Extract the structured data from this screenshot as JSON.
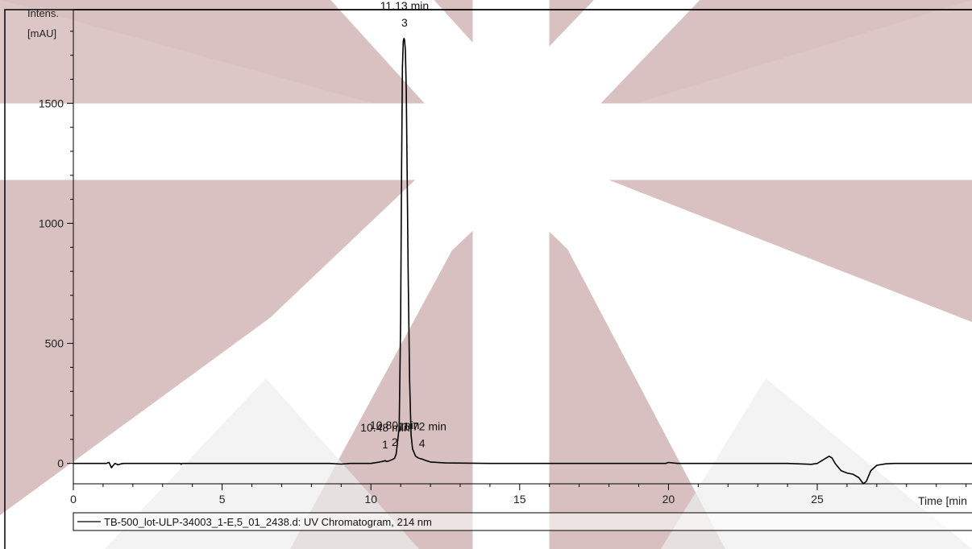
{
  "chart_data": {
    "type": "line",
    "y_unit": [
      "Intens.",
      "[mAU]"
    ],
    "xlabel": "Time [min",
    "xlim": [
      0,
      30.2
    ],
    "ylim": [
      -85,
      1890
    ],
    "x_ticks": [
      0,
      5,
      10,
      15,
      20,
      25
    ],
    "y_ticks": [
      0,
      500,
      1000,
      1500
    ],
    "x_minor_step": 1,
    "y_minor_step": 100,
    "legend": {
      "placement": "bottom",
      "label": "TB-500_lot-ULP-34003_1-E,5_01_2438.d: UV Chromatogram, 214 nm"
    },
    "peak_annotations": [
      {
        "time_text": "11.13 min",
        "number": "3",
        "x": 11.13,
        "y": 1770
      },
      {
        "time_text": "10.48 min",
        "number": "1",
        "x": 10.48,
        "y": 12
      },
      {
        "time_text": "10.80 min",
        "number": "2",
        "x": 10.8,
        "y": 22
      },
      {
        "time_text": "11.72 min",
        "number": "4",
        "x": 11.72,
        "y": 18
      }
    ],
    "series": [
      {
        "color": "#000000",
        "x": [
          0,
          1.0,
          1.1,
          1.2,
          1.28,
          1.33,
          1.4,
          1.5,
          1.6,
          1.7,
          2.0,
          3.0,
          3.6,
          3.62,
          3.65,
          5,
          7,
          8.6,
          9.0,
          9.3,
          9.6,
          10.0,
          10.3,
          10.45,
          10.48,
          10.52,
          10.6,
          10.75,
          10.8,
          10.85,
          10.95,
          11.0,
          11.03,
          11.06,
          11.09,
          11.11,
          11.13,
          11.16,
          11.19,
          11.22,
          11.25,
          11.3,
          11.35,
          11.4,
          11.5,
          11.6,
          11.72,
          11.85,
          12.0,
          12.5,
          14,
          16,
          18,
          19.9,
          20.0,
          20.3,
          22,
          24,
          24.8,
          25.0,
          25.2,
          25.4,
          25.5,
          25.6,
          25.8,
          26.0,
          26.2,
          26.4,
          26.55,
          26.65,
          26.8,
          27.0,
          27.3,
          27.6,
          28.5,
          30.2
        ],
        "y": [
          0,
          0,
          0,
          4,
          -18,
          -10,
          0,
          -6,
          -2,
          0,
          0,
          0,
          0,
          -4,
          0,
          0,
          0,
          0,
          -3,
          0,
          0,
          0,
          6,
          10,
          12,
          8,
          10,
          18,
          22,
          40,
          150,
          600,
          1200,
          1650,
          1760,
          1770,
          1765,
          1720,
          1550,
          1200,
          800,
          350,
          120,
          60,
          30,
          22,
          18,
          12,
          6,
          2,
          0,
          0,
          0,
          0,
          4,
          0,
          0,
          0,
          -4,
          0,
          15,
          30,
          22,
          0,
          -30,
          -40,
          -45,
          -60,
          -85,
          -75,
          -30,
          -8,
          -2,
          0,
          0,
          0
        ]
      }
    ]
  }
}
